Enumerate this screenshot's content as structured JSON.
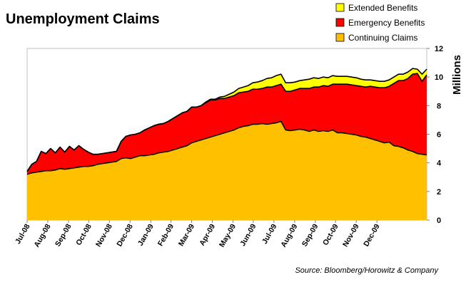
{
  "chart_data": {
    "type": "area",
    "stacked": true,
    "title": "Unemployment Claims",
    "ylabel": "Millions",
    "ylim": [
      0,
      12
    ],
    "yticks": [
      0,
      2,
      4,
      6,
      8,
      10,
      12
    ],
    "grid": false,
    "legend_position": "top-right",
    "source": "Source: Bloomberg/Horowitz & Company",
    "x_labels": [
      "Jul-08",
      "Aug-08",
      "Sep-08",
      "Oct-08",
      "Nov-08",
      "Dec-08",
      "Jan-09",
      "Feb-09",
      "Mar-09",
      "Apr-09",
      "May-09",
      "Jun-09",
      "Jul-09",
      "Aug-09",
      "Sep-09",
      "Oct-09",
      "Nov-09",
      "Dec-09"
    ],
    "x_label_index": [
      0,
      4.4,
      8.8,
      13.1,
      17.5,
      21.9,
      26.3,
      30.6,
      35.0,
      39.4,
      43.8,
      48.1,
      52.5,
      56.9,
      61.3,
      65.6,
      70.0,
      74.4
    ],
    "series": [
      {
        "name": "Continuing Claims",
        "color": "#ffc000",
        "values": [
          3.2,
          3.3,
          3.35,
          3.4,
          3.45,
          3.45,
          3.5,
          3.6,
          3.55,
          3.6,
          3.65,
          3.7,
          3.75,
          3.75,
          3.8,
          3.9,
          3.95,
          4.0,
          4.05,
          4.1,
          4.3,
          4.35,
          4.3,
          4.4,
          4.5,
          4.5,
          4.55,
          4.6,
          4.7,
          4.75,
          4.8,
          4.9,
          5.0,
          5.1,
          5.2,
          5.4,
          5.5,
          5.6,
          5.7,
          5.8,
          5.9,
          6.0,
          6.1,
          6.2,
          6.3,
          6.45,
          6.55,
          6.6,
          6.7,
          6.7,
          6.75,
          6.7,
          6.75,
          6.8,
          6.9,
          6.3,
          6.25,
          6.3,
          6.35,
          6.3,
          6.2,
          6.3,
          6.2,
          6.25,
          6.2,
          6.3,
          6.1,
          6.1,
          6.05,
          6.0,
          5.95,
          5.85,
          5.8,
          5.7,
          5.6,
          5.5,
          5.4,
          5.45,
          5.2,
          5.15,
          5.05,
          4.9,
          4.8,
          4.65,
          4.6,
          4.55
        ]
      },
      {
        "name": "Emergency Benefits",
        "color": "#ff0000",
        "values": [
          0.2,
          0.6,
          0.75,
          1.4,
          1.2,
          1.55,
          1.2,
          1.5,
          1.2,
          1.55,
          1.25,
          1.5,
          1.2,
          1.0,
          0.8,
          0.7,
          0.7,
          0.7,
          0.7,
          0.7,
          1.2,
          1.5,
          1.65,
          1.6,
          1.6,
          1.8,
          1.9,
          2.0,
          2.0,
          2.0,
          2.1,
          2.2,
          2.3,
          2.4,
          2.4,
          2.5,
          2.4,
          2.4,
          2.5,
          2.6,
          2.5,
          2.5,
          2.4,
          2.4,
          2.4,
          2.45,
          2.4,
          2.4,
          2.45,
          2.45,
          2.45,
          2.6,
          2.55,
          2.6,
          2.6,
          2.7,
          2.75,
          2.8,
          2.85,
          2.9,
          3.0,
          3.0,
          3.1,
          3.15,
          3.15,
          3.2,
          3.4,
          3.4,
          3.45,
          3.45,
          3.45,
          3.5,
          3.5,
          3.65,
          3.7,
          3.75,
          3.85,
          3.9,
          4.35,
          4.6,
          4.7,
          5.0,
          5.4,
          5.6,
          5.1,
          5.6
        ]
      },
      {
        "name": "Extended Benefits",
        "color": "#ffff00",
        "values": [
          0,
          0,
          0,
          0,
          0,
          0,
          0,
          0,
          0,
          0,
          0,
          0,
          0,
          0,
          0,
          0,
          0,
          0,
          0,
          0,
          0,
          0,
          0,
          0,
          0,
          0,
          0,
          0,
          0,
          0,
          0,
          0,
          0,
          0,
          0,
          0,
          0,
          0,
          0.05,
          0.05,
          0.05,
          0.1,
          0.15,
          0.2,
          0.25,
          0.3,
          0.35,
          0.4,
          0.45,
          0.5,
          0.55,
          0.6,
          0.65,
          0.7,
          0.7,
          0.6,
          0.6,
          0.55,
          0.55,
          0.6,
          0.65,
          0.65,
          0.6,
          0.6,
          0.6,
          0.6,
          0.55,
          0.55,
          0.55,
          0.55,
          0.55,
          0.5,
          0.5,
          0.45,
          0.45,
          0.45,
          0.45,
          0.45,
          0.45,
          0.45,
          0.45,
          0.45,
          0.4,
          0.3,
          0.5,
          0.4
        ]
      }
    ]
  }
}
